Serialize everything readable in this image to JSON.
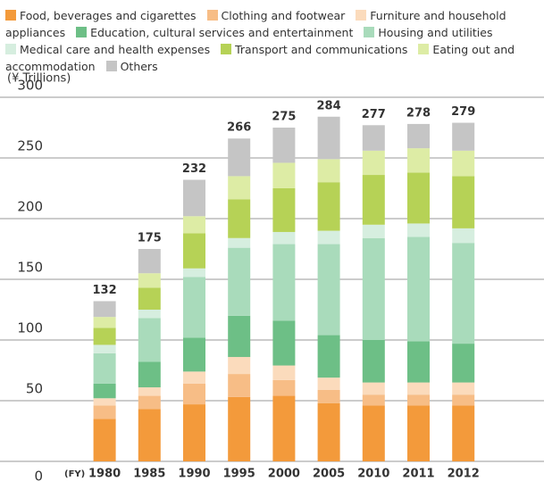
{
  "chart_data": {
    "type": "stacked_bar",
    "y_axis_label": "(¥ Trillions)",
    "x_axis_label": "(FY)",
    "categories": [
      "1980",
      "1985",
      "1990",
      "1995",
      "2000",
      "2005",
      "2010",
      "2011",
      "2012"
    ],
    "series": [
      {
        "name": "Food, beverages and cigarettes",
        "color": "#f39a3b",
        "values": [
          35,
          43,
          47,
          53,
          54,
          48,
          46,
          46,
          46
        ]
      },
      {
        "name": "Clothing and footwear",
        "color": "#f7bd86",
        "values": [
          11,
          11,
          17,
          19,
          13,
          11,
          9,
          9,
          9
        ]
      },
      {
        "name": "Furniture and household appliances",
        "color": "#fbdbbc",
        "values": [
          6,
          7,
          10,
          14,
          12,
          10,
          10,
          10,
          10
        ]
      },
      {
        "name": "Education, cultural services and entertainment",
        "color": "#6dbf86",
        "values": [
          12,
          21,
          28,
          34,
          37,
          35,
          35,
          34,
          32
        ]
      },
      {
        "name": "Housing and utilities",
        "color": "#a9dbbb",
        "values": [
          25,
          36,
          50,
          56,
          63,
          75,
          84,
          86,
          83
        ]
      },
      {
        "name": "Medical care and health expenses",
        "color": "#d6eedf",
        "values": [
          7,
          7,
          7,
          8,
          10,
          11,
          11,
          11,
          12
        ]
      },
      {
        "name": "Transport and communications",
        "color": "#b6d256",
        "values": [
          14,
          18,
          29,
          32,
          36,
          40,
          41,
          42,
          43
        ]
      },
      {
        "name": "Eating out and accommodation",
        "color": "#ddeca5",
        "values": [
          9,
          12,
          14,
          19,
          21,
          19,
          20,
          20,
          21
        ]
      },
      {
        "name": "Others",
        "color": "#c5c5c5",
        "values": [
          13,
          20,
          30,
          31,
          29,
          35,
          21,
          20,
          23
        ]
      }
    ],
    "totals": [
      132,
      175,
      232,
      266,
      275,
      284,
      277,
      278,
      279
    ],
    "ylim": [
      0,
      300
    ],
    "yticks": [
      0,
      50,
      100,
      150,
      200,
      250,
      300
    ],
    "grid": true
  }
}
